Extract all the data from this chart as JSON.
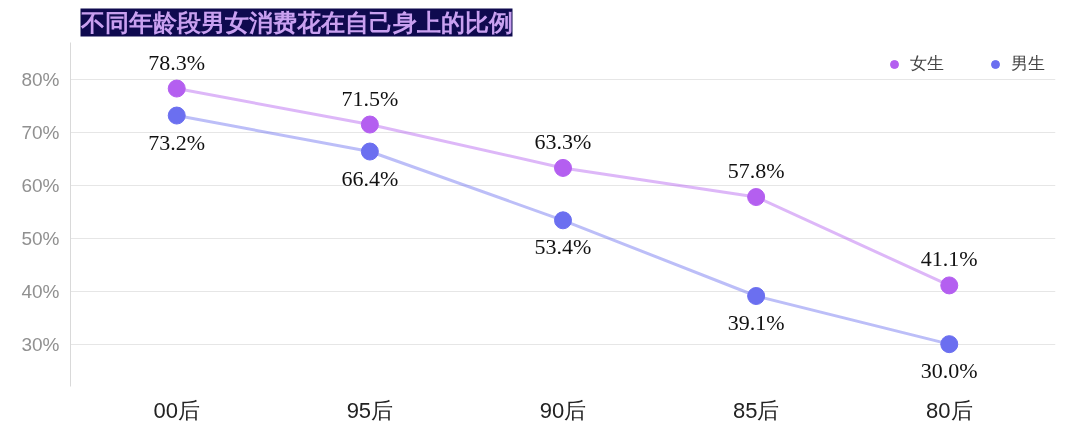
{
  "chart_data": {
    "type": "line",
    "title": "不同年龄段男女消费花在自己身上的比例",
    "categories": [
      "00后",
      "95后",
      "90后",
      "85后",
      "80后"
    ],
    "series": [
      {
        "name": "女生",
        "color": "#b45ff0",
        "values": [
          78.3,
          71.5,
          63.3,
          57.8,
          41.1
        ],
        "value_labels": [
          "78.3%",
          "71.5%",
          "63.3%",
          "57.8%",
          "41.1%"
        ]
      },
      {
        "name": "男生",
        "color": "#6b6ff0",
        "values": [
          73.2,
          66.4,
          53.4,
          39.1,
          30.0
        ],
        "value_labels": [
          "73.2%",
          "66.4%",
          "53.4%",
          "39.1%",
          "30.0%"
        ]
      }
    ],
    "ylim": [
      22,
      87
    ],
    "yticks": [
      {
        "value": 30,
        "label": "30%"
      },
      {
        "value": 40,
        "label": "40%"
      },
      {
        "value": 50,
        "label": "50%"
      },
      {
        "value": 60,
        "label": "60%"
      },
      {
        "value": 70,
        "label": "70%"
      },
      {
        "value": 80,
        "label": "80%"
      }
    ],
    "grid": "y",
    "legend": "top right",
    "marker": "circle",
    "line_style": "solid"
  }
}
